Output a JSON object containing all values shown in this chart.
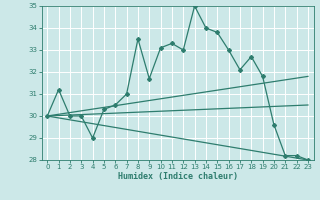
{
  "background_color": "#cce8e8",
  "grid_color": "#ffffff",
  "line_color": "#2e7d6e",
  "xlabel": "Humidex (Indice chaleur)",
  "xlim": [
    -0.5,
    23.5
  ],
  "ylim": [
    28,
    35
  ],
  "yticks": [
    28,
    29,
    30,
    31,
    32,
    33,
    34,
    35
  ],
  "xticks": [
    0,
    1,
    2,
    3,
    4,
    5,
    6,
    7,
    8,
    9,
    10,
    11,
    12,
    13,
    14,
    15,
    16,
    17,
    18,
    19,
    20,
    21,
    22,
    23
  ],
  "series": [
    {
      "x": [
        0,
        1,
        2,
        3,
        4,
        5,
        6,
        7,
        8,
        9,
        10,
        11,
        12,
        13,
        14,
        15,
        16,
        17,
        18,
        19,
        20,
        21,
        22,
        23
      ],
      "y": [
        30.0,
        31.2,
        30.0,
        30.0,
        29.0,
        30.3,
        30.5,
        31.0,
        33.5,
        31.7,
        33.1,
        33.3,
        33.0,
        35.0,
        34.0,
        33.8,
        33.0,
        32.1,
        32.7,
        31.8,
        29.6,
        28.2,
        28.2,
        28.0
      ],
      "marker": "D",
      "markersize": 2.0,
      "linewidth": 0.9
    },
    {
      "x": [
        0,
        23
      ],
      "y": [
        30.0,
        31.8
      ],
      "marker": null,
      "markersize": 0,
      "linewidth": 0.9
    },
    {
      "x": [
        0,
        23
      ],
      "y": [
        30.0,
        30.5
      ],
      "marker": null,
      "markersize": 0,
      "linewidth": 0.9
    },
    {
      "x": [
        0,
        23
      ],
      "y": [
        30.0,
        28.0
      ],
      "marker": null,
      "markersize": 0,
      "linewidth": 0.9
    }
  ],
  "tick_labelsize": 5.0,
  "xlabel_fontsize": 6.0
}
